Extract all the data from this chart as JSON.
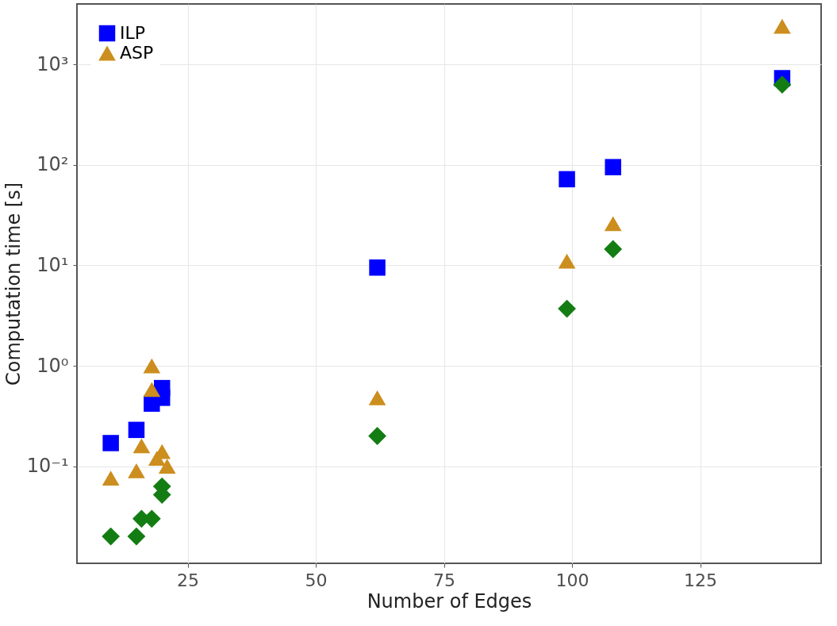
{
  "chart_data": {
    "type": "scatter",
    "xlabel": "Number of Edges",
    "ylabel": "Computation time [s]",
    "log": "y",
    "grid": true,
    "legend": "top left",
    "xlim": [
      3.4,
      148.6
    ],
    "xticks": [
      25,
      50,
      75,
      100,
      125
    ],
    "ylim": [
      0.0108,
      4000
    ],
    "yticks": [
      {
        "value": 0.1,
        "label": "10⁻¹"
      },
      {
        "value": 1,
        "label": "10⁰"
      },
      {
        "value": 10,
        "label": "10¹"
      },
      {
        "value": 100,
        "label": "10²"
      },
      {
        "value": 1000,
        "label": "10³"
      }
    ],
    "series": [
      {
        "name": "ILP",
        "color": "#0000ff",
        "marker": "square",
        "x": [
          10,
          15,
          17,
          18,
          20,
          20,
          62,
          99,
          108,
          141
        ],
        "values": [
          0.17,
          0.23,
          null,
          0.42,
          0.6,
          0.48,
          9.5,
          72,
          95,
          730
        ]
      },
      {
        "name": "ASP",
        "color": "#cc8e1e",
        "marker": "triangle",
        "x": [
          10,
          15,
          16,
          18,
          18,
          19,
          20,
          21,
          62,
          99,
          108,
          141
        ],
        "values": [
          0.076,
          0.09,
          0.16,
          1.0,
          0.58,
          0.12,
          0.14,
          0.1,
          0.48,
          11,
          26,
          2400
        ]
      },
      {
        "color": "#137d13",
        "marker": "diamond",
        "x": [
          10,
          15,
          16,
          18,
          20,
          20,
          62,
          99,
          108,
          141
        ],
        "values": [
          0.02,
          0.02,
          0.03,
          0.03,
          0.052,
          0.063,
          0.2,
          3.7,
          14.5,
          630
        ]
      }
    ]
  }
}
